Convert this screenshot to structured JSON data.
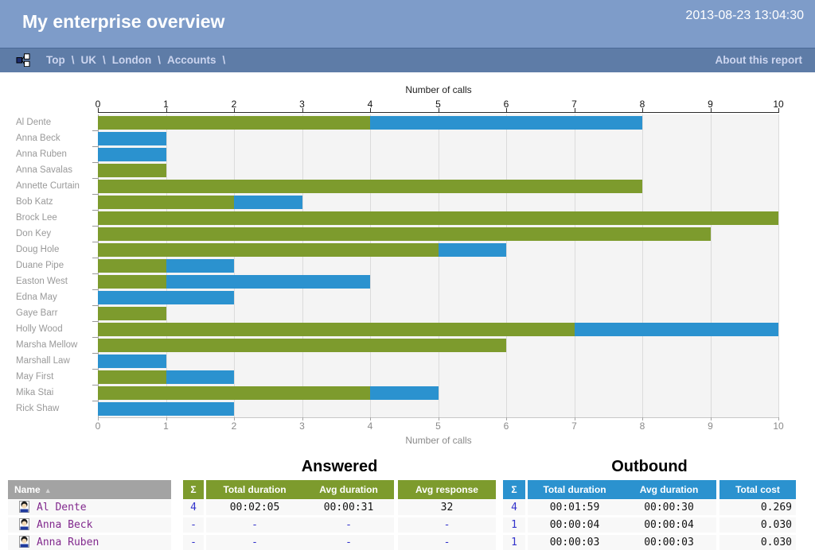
{
  "header": {
    "title": "My enterprise overview",
    "timestamp": "2013-08-23 13:04:30"
  },
  "breadcrumb": {
    "items": [
      "Top",
      "UK",
      "London",
      "Accounts"
    ],
    "separator": "\\",
    "about_label": "About this report"
  },
  "chart_data": {
    "type": "bar",
    "orientation": "horizontal",
    "stacked": true,
    "title": "Number of calls",
    "xlabel": "Number of calls",
    "xlim": [
      0,
      10
    ],
    "xticks": [
      0,
      1,
      2,
      3,
      4,
      5,
      6,
      7,
      8,
      9,
      10
    ],
    "grid": true,
    "categories": [
      "Al Dente",
      "Anna Beck",
      "Anna Ruben",
      "Anna Savalas",
      "Annette Curtain",
      "Bob Katz",
      "Brock Lee",
      "Don Key",
      "Doug Hole",
      "Duane Pipe",
      "Easton West",
      "Edna May",
      "Gaye Barr",
      "Holly Wood",
      "Marsha Mellow",
      "Marshall Law",
      "May First",
      "Mika Stai",
      "Rick Shaw"
    ],
    "series": [
      {
        "name": "Answered",
        "color": "#7d9b2d",
        "values": [
          4,
          0,
          0,
          1,
          8,
          2,
          10,
          9,
          5,
          1,
          1,
          0,
          1,
          7,
          6,
          0,
          1,
          4,
          0
        ]
      },
      {
        "name": "Outbound",
        "color": "#2b92cf",
        "values": [
          4,
          1,
          1,
          0,
          0,
          1,
          0,
          0,
          1,
          1,
          3,
          2,
          0,
          3,
          0,
          1,
          1,
          1,
          2
        ]
      }
    ]
  },
  "table": {
    "name_header": "Name",
    "sort_icon": "▲",
    "groups": [
      {
        "label": "Answered",
        "color": "#7d9b2d",
        "columns": [
          "Σ",
          "Total duration",
          "Avg duration",
          "Avg response"
        ]
      },
      {
        "label": "Outbound",
        "color": "#2b92cf",
        "columns": [
          "Σ",
          "Total duration",
          "Avg duration",
          "Total cost"
        ]
      }
    ],
    "rows": [
      {
        "name": "Al Dente",
        "answered": [
          "4",
          "00:02:05",
          "00:00:31",
          "32"
        ],
        "outbound": [
          "4",
          "00:01:59",
          "00:00:30",
          "0.269"
        ]
      },
      {
        "name": "Anna Beck",
        "answered": [
          "-",
          "-",
          "-",
          "-"
        ],
        "outbound": [
          "1",
          "00:00:04",
          "00:00:04",
          "0.030"
        ]
      },
      {
        "name": "Anna Ruben",
        "answered": [
          "-",
          "-",
          "-",
          "-"
        ],
        "outbound": [
          "1",
          "00:00:03",
          "00:00:03",
          "0.030"
        ]
      }
    ]
  },
  "colors": {
    "titlebar": "#7e9cc9",
    "breadcrumb_bar": "#5e7ca7",
    "breadcrumb_text": "#ccd5ef",
    "answered": "#7d9b2d",
    "outbound": "#2b92cf",
    "plot_background": "#f4f4f4",
    "category_label": "#999999",
    "name_header_bg": "#a3a3a3",
    "name_link": "#822a8e",
    "sum_link": "#3333cc"
  }
}
